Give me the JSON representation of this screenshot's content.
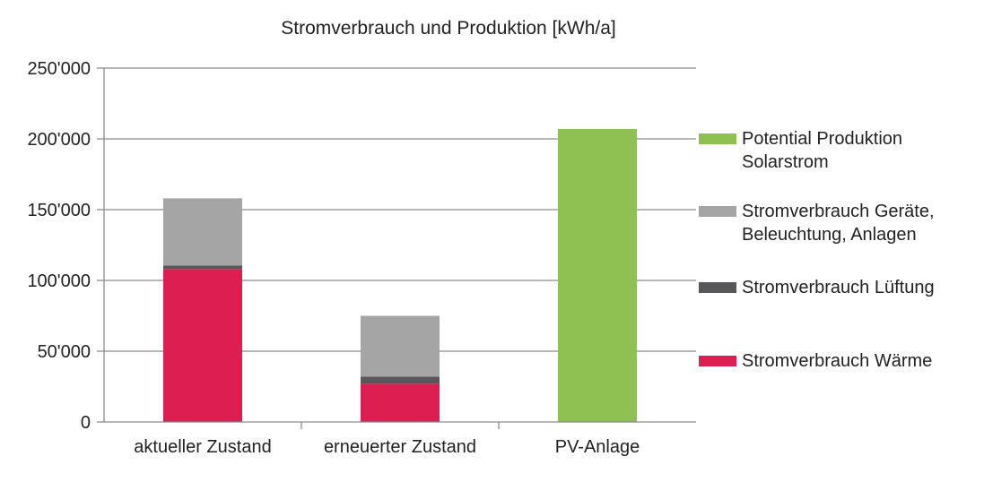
{
  "chart_data": {
    "type": "bar",
    "stacked": true,
    "title": "Stromverbrauch und Produktion [kWh/a]",
    "xlabel": "",
    "ylabel": "",
    "ylim": [
      0,
      250000
    ],
    "y_ticks": [
      0,
      50000,
      100000,
      150000,
      200000,
      250000
    ],
    "y_tick_labels": [
      "0",
      "50'000",
      "100'000",
      "150'000",
      "200'000",
      "250'000"
    ],
    "grid": true,
    "legend_position": "right",
    "categories": [
      "aktueller Zustand",
      "erneuerter Zustand",
      "PV-Anlage"
    ],
    "series": [
      {
        "name": "Stromverbrauch Wärme",
        "legend_lines": [
          "Stromverbrauch Wärme"
        ],
        "color": "#dc1f50",
        "values": [
          108000,
          27000,
          0
        ]
      },
      {
        "name": "Stromverbrauch Lüftung",
        "legend_lines": [
          "Stromverbrauch Lüftung"
        ],
        "color": "#58585a",
        "values": [
          2500,
          5000,
          0
        ]
      },
      {
        "name": "Stromverbrauch Geräte, Beleuchtung, Anlagen",
        "legend_lines": [
          "Stromverbrauch Geräte,",
          "Beleuchtung, Anlagen"
        ],
        "color": "#a5a5a5",
        "values": [
          47500,
          43000,
          0
        ]
      },
      {
        "name": "Potential Produktion Solarstrom",
        "legend_lines": [
          "Potential Produktion",
          "Solarstrom"
        ],
        "color": "#8fc152",
        "values": [
          0,
          0,
          207000
        ]
      }
    ],
    "legend_order": [
      3,
      2,
      1,
      0
    ]
  }
}
